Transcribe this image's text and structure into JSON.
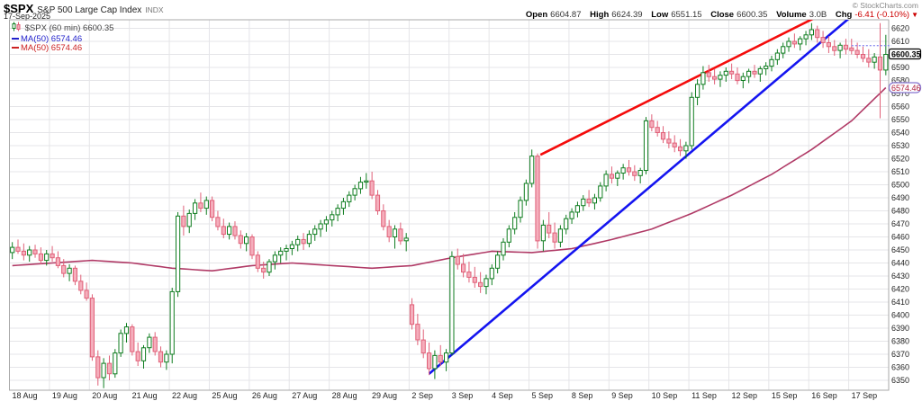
{
  "header": {
    "symbol": "$SPX",
    "name": "S&P 500 Large Cap Index",
    "exchange": "INDX",
    "date": "17-Sep-2025",
    "copyright": "© StockCharts.com",
    "ohlc_items": [
      {
        "label": "Open",
        "value": "6604.87"
      },
      {
        "label": "High",
        "value": "6624.39"
      },
      {
        "label": "Low",
        "value": "6551.15"
      },
      {
        "label": "Close",
        "value": "6600.35"
      },
      {
        "label": "Volume",
        "value": "3.0B"
      },
      {
        "label": "Chg",
        "value": "-6.41 (-0.10%)"
      }
    ],
    "chg_arrow": "▼"
  },
  "legend": {
    "series": "$SPX (60 min) 6600.35",
    "ma_blue": "MA(50) 6574.46",
    "ma_red": "MA(50) 6574.46"
  },
  "colors": {
    "up": "#0f7d20",
    "down_stroke": "#e06078",
    "down_fill": "#f5aebc",
    "ma_line": "#b03a66",
    "trend_red": "#f40b0b",
    "trend_blue": "#1414f0",
    "prev_close_dotted": "#8c8cf0",
    "grid": "#e5e5e8",
    "border": "#aaaaaa",
    "axis_text": "#222222"
  },
  "chart_data": {
    "type": "candlestick",
    "title": "$SPX S&P 500 Large Cap Index, 60 min bars",
    "interval": "60 min",
    "ylim": [
      6341,
      6626.5
    ],
    "y_ticks": [
      6620,
      6610,
      6600,
      6590,
      6580,
      6570,
      6560,
      6550,
      6540,
      6530,
      6520,
      6510,
      6500,
      6490,
      6480,
      6470,
      6460,
      6450,
      6440,
      6430,
      6420,
      6410,
      6400,
      6390,
      6380,
      6370,
      6360,
      6350
    ],
    "y_tick_hidden": [
      6600
    ],
    "x_labels": [
      "18 Aug",
      "19 Aug",
      "20 Aug",
      "21 Aug",
      "22 Aug",
      "25 Aug",
      "26 Aug",
      "27 Aug",
      "28 Aug",
      "29 Aug",
      "2 Sep",
      "3 Sep",
      "4 Sep",
      "5 Sep",
      "8 Sep",
      "9 Sep",
      "10 Sep",
      "11 Sep",
      "12 Sep",
      "15 Sep",
      "16 Sep",
      "17 Sep"
    ],
    "bars_per_day": 7,
    "ohlc_bars": [
      [
        6448,
        6456,
        6443,
        6452
      ],
      [
        6452,
        6458,
        6447,
        6449
      ],
      [
        6449,
        6455,
        6442,
        6446
      ],
      [
        6446,
        6453,
        6441,
        6450
      ],
      [
        6450,
        6454,
        6444,
        6447
      ],
      [
        6447,
        6452,
        6439,
        6442
      ],
      [
        6442,
        6450,
        6438,
        6447
      ],
      [
        6447,
        6453,
        6441,
        6444
      ],
      [
        6444,
        6449,
        6436,
        6438
      ],
      [
        6438,
        6443,
        6429,
        6432
      ],
      [
        6432,
        6439,
        6426,
        6436
      ],
      [
        6436,
        6438,
        6423,
        6426
      ],
      [
        6426,
        6431,
        6416,
        6419
      ],
      [
        6419,
        6425,
        6411,
        6413
      ],
      [
        6413,
        6416,
        6365,
        6368
      ],
      [
        6368,
        6373,
        6346,
        6352
      ],
      [
        6352,
        6367,
        6344,
        6363
      ],
      [
        6363,
        6369,
        6350,
        6355
      ],
      [
        6355,
        6374,
        6352,
        6371
      ],
      [
        6371,
        6389,
        6368,
        6386
      ],
      [
        6386,
        6394,
        6379,
        6391
      ],
      [
        6391,
        6393,
        6369,
        6372
      ],
      [
        6372,
        6379,
        6361,
        6365
      ],
      [
        6365,
        6377,
        6359,
        6375
      ],
      [
        6375,
        6386,
        6371,
        6383
      ],
      [
        6383,
        6387,
        6369,
        6372
      ],
      [
        6372,
        6376,
        6360,
        6364
      ],
      [
        6364,
        6373,
        6358,
        6370
      ],
      [
        6370,
        6421,
        6363,
        6418
      ],
      [
        6418,
        6479,
        6414,
        6476
      ],
      [
        6476,
        6484,
        6461,
        6468
      ],
      [
        6468,
        6481,
        6463,
        6478
      ],
      [
        6478,
        6489,
        6473,
        6486
      ],
      [
        6486,
        6494,
        6479,
        6482
      ],
      [
        6482,
        6491,
        6477,
        6488
      ],
      [
        6488,
        6491,
        6472,
        6475
      ],
      [
        6475,
        6480,
        6465,
        6468
      ],
      [
        6468,
        6474,
        6459,
        6462
      ],
      [
        6462,
        6471,
        6458,
        6468
      ],
      [
        6468,
        6472,
        6458,
        6461
      ],
      [
        6461,
        6465,
        6451,
        6455
      ],
      [
        6455,
        6463,
        6449,
        6460
      ],
      [
        6460,
        6462,
        6443,
        6446
      ],
      [
        6446,
        6449,
        6433,
        6436
      ],
      [
        6436,
        6441,
        6428,
        6433
      ],
      [
        6433,
        6443,
        6430,
        6441
      ],
      [
        6441,
        6449,
        6435,
        6446
      ],
      [
        6446,
        6452,
        6440,
        6449
      ],
      [
        6449,
        6454,
        6442,
        6451
      ],
      [
        6451,
        6457,
        6446,
        6454
      ],
      [
        6454,
        6461,
        6449,
        6458
      ],
      [
        6458,
        6463,
        6450,
        6455
      ],
      [
        6455,
        6465,
        6452,
        6462
      ],
      [
        6462,
        6469,
        6457,
        6466
      ],
      [
        6466,
        6473,
        6460,
        6470
      ],
      [
        6470,
        6476,
        6464,
        6473
      ],
      [
        6473,
        6480,
        6468,
        6477
      ],
      [
        6477,
        6485,
        6472,
        6482
      ],
      [
        6482,
        6490,
        6477,
        6487
      ],
      [
        6487,
        6495,
        6483,
        6492
      ],
      [
        6492,
        6500,
        6488,
        6497
      ],
      [
        6497,
        6506,
        6493,
        6502
      ],
      [
        6502,
        6509,
        6497,
        6503
      ],
      [
        6503,
        6510,
        6489,
        6492
      ],
      [
        6492,
        6496,
        6477,
        6480
      ],
      [
        6480,
        6485,
        6465,
        6468
      ],
      [
        6468,
        6473,
        6456,
        6460
      ],
      [
        6460,
        6469,
        6451,
        6466
      ],
      [
        6466,
        6471,
        6454,
        6457
      ],
      [
        6457,
        6463,
        6449,
        6459
      ],
      [
        6408,
        6413,
        6389,
        6393
      ],
      [
        6393,
        6401,
        6377,
        6381
      ],
      [
        6381,
        6389,
        6367,
        6371
      ],
      [
        6371,
        6379,
        6354,
        6359
      ],
      [
        6359,
        6373,
        6351,
        6369
      ],
      [
        6369,
        6377,
        6361,
        6364
      ],
      [
        6364,
        6374,
        6357,
        6371
      ],
      [
        6371,
        6449,
        6369,
        6445
      ],
      [
        6445,
        6451,
        6435,
        6439
      ],
      [
        6439,
        6447,
        6429,
        6433
      ],
      [
        6433,
        6441,
        6425,
        6429
      ],
      [
        6429,
        6437,
        6421,
        6425
      ],
      [
        6425,
        6433,
        6417,
        6422
      ],
      [
        6422,
        6431,
        6416,
        6428
      ],
      [
        6428,
        6439,
        6423,
        6436
      ],
      [
        6436,
        6449,
        6432,
        6446
      ],
      [
        6446,
        6459,
        6442,
        6456
      ],
      [
        6456,
        6469,
        6452,
        6466
      ],
      [
        6466,
        6479,
        6462,
        6475
      ],
      [
        6475,
        6491,
        6471,
        6488
      ],
      [
        6488,
        6504,
        6484,
        6501
      ],
      [
        6501,
        6527,
        6498,
        6522
      ],
      [
        6522,
        6524,
        6451,
        6457
      ],
      [
        6457,
        6473,
        6449,
        6469
      ],
      [
        6469,
        6479,
        6459,
        6463
      ],
      [
        6463,
        6471,
        6451,
        6456
      ],
      [
        6456,
        6469,
        6452,
        6466
      ],
      [
        6466,
        6477,
        6462,
        6474
      ],
      [
        6474,
        6482,
        6470,
        6479
      ],
      [
        6479,
        6487,
        6475,
        6484
      ],
      [
        6484,
        6492,
        6480,
        6489
      ],
      [
        6489,
        6496,
        6483,
        6486
      ],
      [
        6486,
        6493,
        6481,
        6490
      ],
      [
        6490,
        6502,
        6487,
        6499
      ],
      [
        6499,
        6511,
        6495,
        6508
      ],
      [
        6508,
        6514,
        6501,
        6505
      ],
      [
        6505,
        6511,
        6499,
        6509
      ],
      [
        6509,
        6516,
        6504,
        6513
      ],
      [
        6513,
        6519,
        6507,
        6510
      ],
      [
        6510,
        6515,
        6503,
        6507
      ],
      [
        6507,
        6513,
        6501,
        6511
      ],
      [
        6511,
        6552,
        6508,
        6549
      ],
      [
        6549,
        6554,
        6541,
        6544
      ],
      [
        6544,
        6549,
        6537,
        6540
      ],
      [
        6540,
        6545,
        6532,
        6535
      ],
      [
        6535,
        6541,
        6528,
        6532
      ],
      [
        6532,
        6538,
        6525,
        6529
      ],
      [
        6529,
        6535,
        6522,
        6526
      ],
      [
        6526,
        6533,
        6520,
        6530
      ],
      [
        6530,
        6571,
        6527,
        6567
      ],
      [
        6567,
        6581,
        6561,
        6577
      ],
      [
        6577,
        6591,
        6573,
        6586
      ],
      [
        6586,
        6592,
        6579,
        6583
      ],
      [
        6583,
        6589,
        6577,
        6581
      ],
      [
        6581,
        6587,
        6575,
        6584
      ],
      [
        6584,
        6590,
        6579,
        6587
      ],
      [
        6587,
        6593,
        6581,
        6585
      ],
      [
        6585,
        6590,
        6577,
        6580
      ],
      [
        6580,
        6586,
        6574,
        6583
      ],
      [
        6583,
        6589,
        6578,
        6587
      ],
      [
        6587,
        6592,
        6582,
        6585
      ],
      [
        6585,
        6591,
        6579,
        6589
      ],
      [
        6589,
        6594,
        6584,
        6591
      ],
      [
        6591,
        6599,
        6587,
        6596
      ],
      [
        6596,
        6604,
        6592,
        6601
      ],
      [
        6601,
        6609,
        6597,
        6606
      ],
      [
        6606,
        6613,
        6602,
        6610
      ],
      [
        6610,
        6616,
        6605,
        6608
      ],
      [
        6608,
        6614,
        6603,
        6612
      ],
      [
        6612,
        6618,
        6607,
        6615
      ],
      [
        6615,
        6624,
        6611,
        6619
      ],
      [
        6619,
        6622,
        6609,
        6613
      ],
      [
        6613,
        6618,
        6605,
        6609
      ],
      [
        6609,
        6614,
        6601,
        6606
      ],
      [
        6606,
        6611,
        6599,
        6603
      ],
      [
        6603,
        6609,
        6597,
        6607
      ],
      [
        6607,
        6612,
        6600,
        6604
      ],
      [
        6605,
        6612,
        6600,
        6603
      ],
      [
        6603,
        6609,
        6597,
        6600
      ],
      [
        6600,
        6606,
        6594,
        6597
      ],
      [
        6597,
        6604,
        6590,
        6594
      ],
      [
        6594,
        6601,
        6589,
        6598
      ],
      [
        6598,
        6624,
        6551,
        6588
      ],
      [
        6588,
        6615,
        6584,
        6600
      ]
    ],
    "ma50_points": [
      [
        0,
        6438
      ],
      [
        7,
        6440
      ],
      [
        14,
        6442
      ],
      [
        21,
        6440
      ],
      [
        28,
        6436
      ],
      [
        35,
        6434
      ],
      [
        42,
        6438
      ],
      [
        49,
        6440
      ],
      [
        56,
        6438
      ],
      [
        63,
        6436
      ],
      [
        70,
        6438
      ],
      [
        77,
        6444
      ],
      [
        84,
        6449
      ],
      [
        91,
        6448
      ],
      [
        98,
        6451
      ],
      [
        105,
        6458
      ],
      [
        112,
        6466
      ],
      [
        119,
        6478
      ],
      [
        126,
        6492
      ],
      [
        133,
        6508
      ],
      [
        140,
        6527
      ],
      [
        147,
        6549
      ],
      [
        153,
        6574.46
      ]
    ],
    "trendlines": [
      {
        "name": "blue-uptrend",
        "from_bar": 73,
        "from_price": 6355,
        "to_bar": 148,
        "to_price": 6633
      },
      {
        "name": "red-uptrend",
        "from_bar": 92.5,
        "from_price": 6523,
        "to_bar": 141,
        "to_price": 6629
      }
    ],
    "prev_close_line": {
      "price": 6606.76,
      "from_bar": 147
    },
    "price_boxes": [
      {
        "text": "6600.35",
        "price": 6600.35,
        "border": "#000000",
        "color": "#000000",
        "bold": true,
        "rx": 2
      },
      {
        "text": "6574.46",
        "price": 6574.46,
        "border": "#8876d0",
        "color": "#b02040",
        "bold": false,
        "rx": 5
      }
    ],
    "last_price": 6600.35,
    "ma50_value": 6574.46
  }
}
